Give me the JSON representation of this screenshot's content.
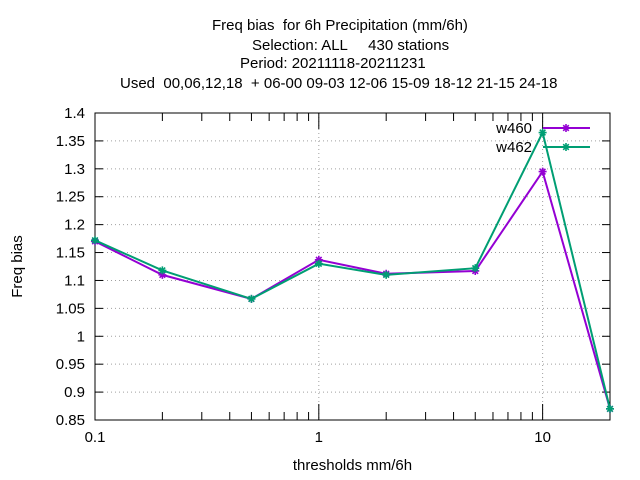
{
  "chart_data": {
    "type": "line",
    "title_lines": [
      "Freq bias  for 6h Precipitation (mm/6h)",
      "Selection: ALL     430 stations",
      "Period: 20211118-20211231",
      "Used  00,06,12,18  + 06-00 09-03 12-06 15-09 18-12 21-15 24-18"
    ],
    "xlabel": "thresholds mm/6h",
    "ylabel": "Freq bias",
    "x_scale": "log",
    "xlim": [
      0.1,
      20
    ],
    "ylim": [
      0.85,
      1.4
    ],
    "x_ticks": [
      0.1,
      1,
      10
    ],
    "x_tick_labels": [
      "0.1",
      "1",
      "10"
    ],
    "y_ticks": [
      0.85,
      0.9,
      0.95,
      1.0,
      1.05,
      1.1,
      1.15,
      1.2,
      1.25,
      1.3,
      1.35,
      1.4
    ],
    "y_tick_labels": [
      "0.85",
      "0.9",
      "0.95",
      "1",
      "1.05",
      "1.1",
      "1.15",
      "1.2",
      "1.25",
      "1.3",
      "1.35",
      "1.4"
    ],
    "grid": true,
    "legend_position": "top-right",
    "x": [
      0.1,
      0.2,
      0.5,
      1,
      2,
      5,
      10,
      20
    ],
    "series": [
      {
        "name": "w460",
        "color": "#9400d3",
        "values": [
          1.17,
          1.11,
          1.067,
          1.137,
          1.112,
          1.117,
          1.295,
          0.87
        ]
      },
      {
        "name": "w462",
        "color": "#009e73",
        "values": [
          1.172,
          1.118,
          1.067,
          1.13,
          1.11,
          1.122,
          1.365,
          0.87
        ]
      }
    ]
  }
}
